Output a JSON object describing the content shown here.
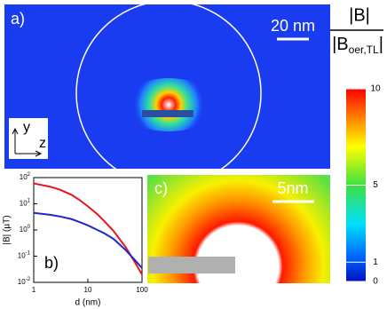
{
  "panel_a": {
    "label": "a)",
    "scale_bar": "20 nm",
    "axis_y": "y",
    "axis_z": "z"
  },
  "colorbar": {
    "numerator": "|B|",
    "denominator": "|B",
    "denominator_sub": "oer,TL",
    "denominator_end": "|",
    "lim": [
      0,
      10
    ],
    "ticks": [
      10,
      5,
      1,
      0
    ]
  },
  "panel_c": {
    "label": "c)",
    "scale_bar": "5nm"
  },
  "chart_data": {
    "type": "line",
    "panel_label": "b)",
    "x_label": "d (nm)",
    "y_label": "|B| (µT)",
    "log_x": true,
    "log_y": true,
    "xlim": [
      1,
      100
    ],
    "xticks": [
      1,
      10,
      100
    ],
    "ylim": [
      0.01,
      100
    ],
    "yticks": [
      {
        "value": 0.01,
        "label": "10",
        "exponent": "-2"
      },
      {
        "value": 0.1,
        "label": "10",
        "exponent": "-1"
      },
      {
        "value": 1,
        "label": "10",
        "exponent": "0"
      },
      {
        "value": 10,
        "label": "10",
        "exponent": "1"
      },
      {
        "value": 100,
        "label": "10",
        "exponent": "2"
      }
    ],
    "x": [
      1,
      2,
      3,
      5,
      7,
      10,
      15,
      20,
      30,
      50,
      70,
      100
    ],
    "series": [
      {
        "color": "#e8141c",
        "values": [
          60,
          45,
          35,
          22,
          14,
          8,
          4,
          2.2,
          0.9,
          0.22,
          0.07,
          0.02
        ]
      },
      {
        "color": "#1c28c8",
        "values": [
          4.5,
          3.8,
          3.3,
          2.6,
          2.0,
          1.5,
          1.0,
          0.75,
          0.45,
          0.17,
          0.08,
          0.035
        ]
      }
    ]
  }
}
